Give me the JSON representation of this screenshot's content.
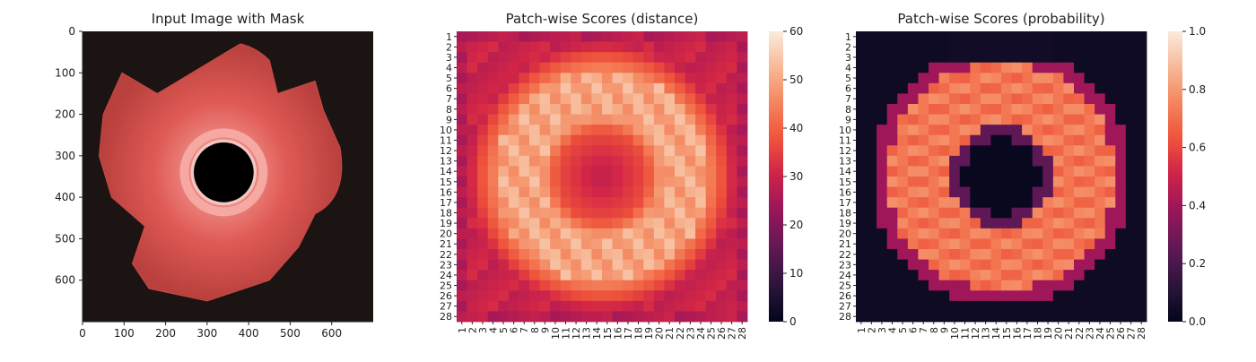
{
  "chart_data": [
    {
      "type": "image",
      "title": "Input Image with Mask",
      "xlim": [
        0,
        700
      ],
      "ylim": [
        700,
        0
      ],
      "xticks": [
        0,
        100,
        200,
        300,
        400,
        500,
        600
      ],
      "yticks": [
        0,
        100,
        200,
        300,
        400,
        500,
        600
      ],
      "description_colors": {
        "background": "#1c1412",
        "part": "#e25a55",
        "highlight": "#f6a8a2",
        "hole": "#000000"
      }
    },
    {
      "type": "heatmap",
      "title": "Patch-wise Scores (distance)",
      "rows": [
        "1",
        "2",
        "3",
        "4",
        "5",
        "6",
        "7",
        "8",
        "9",
        "10",
        "11",
        "12",
        "13",
        "14",
        "15",
        "16",
        "17",
        "18",
        "19",
        "20",
        "21",
        "22",
        "23",
        "24",
        "25",
        "26",
        "27",
        "28"
      ],
      "cols": [
        "1",
        "2",
        "3",
        "4",
        "5",
        "6",
        "7",
        "8",
        "9",
        "10",
        "11",
        "12",
        "13",
        "14",
        "15",
        "16",
        "17",
        "18",
        "19",
        "20",
        "21",
        "22",
        "23",
        "24",
        "25",
        "26",
        "27",
        "28"
      ],
      "vmin": 0,
      "vmax": 60,
      "colorbar_ticks": [
        0,
        10,
        20,
        30,
        40,
        50,
        60
      ]
    },
    {
      "type": "heatmap",
      "title": "Patch-wise Scores (probability)",
      "rows": [
        "1",
        "2",
        "3",
        "4",
        "5",
        "6",
        "7",
        "8",
        "9",
        "10",
        "11",
        "12",
        "13",
        "14",
        "15",
        "16",
        "17",
        "18",
        "19",
        "20",
        "21",
        "22",
        "23",
        "24",
        "25",
        "26",
        "27",
        "28"
      ],
      "cols": [
        "1",
        "2",
        "3",
        "4",
        "5",
        "6",
        "7",
        "8",
        "9",
        "10",
        "11",
        "12",
        "13",
        "14",
        "15",
        "16",
        "17",
        "18",
        "19",
        "20",
        "21",
        "22",
        "23",
        "24",
        "25",
        "26",
        "27",
        "28"
      ],
      "vmin": 0.0,
      "vmax": 1.0,
      "colorbar_ticks": [
        "0.0",
        "0.2",
        "0.4",
        "0.6",
        "0.8",
        "1.0"
      ]
    }
  ],
  "colormap": "rocket"
}
